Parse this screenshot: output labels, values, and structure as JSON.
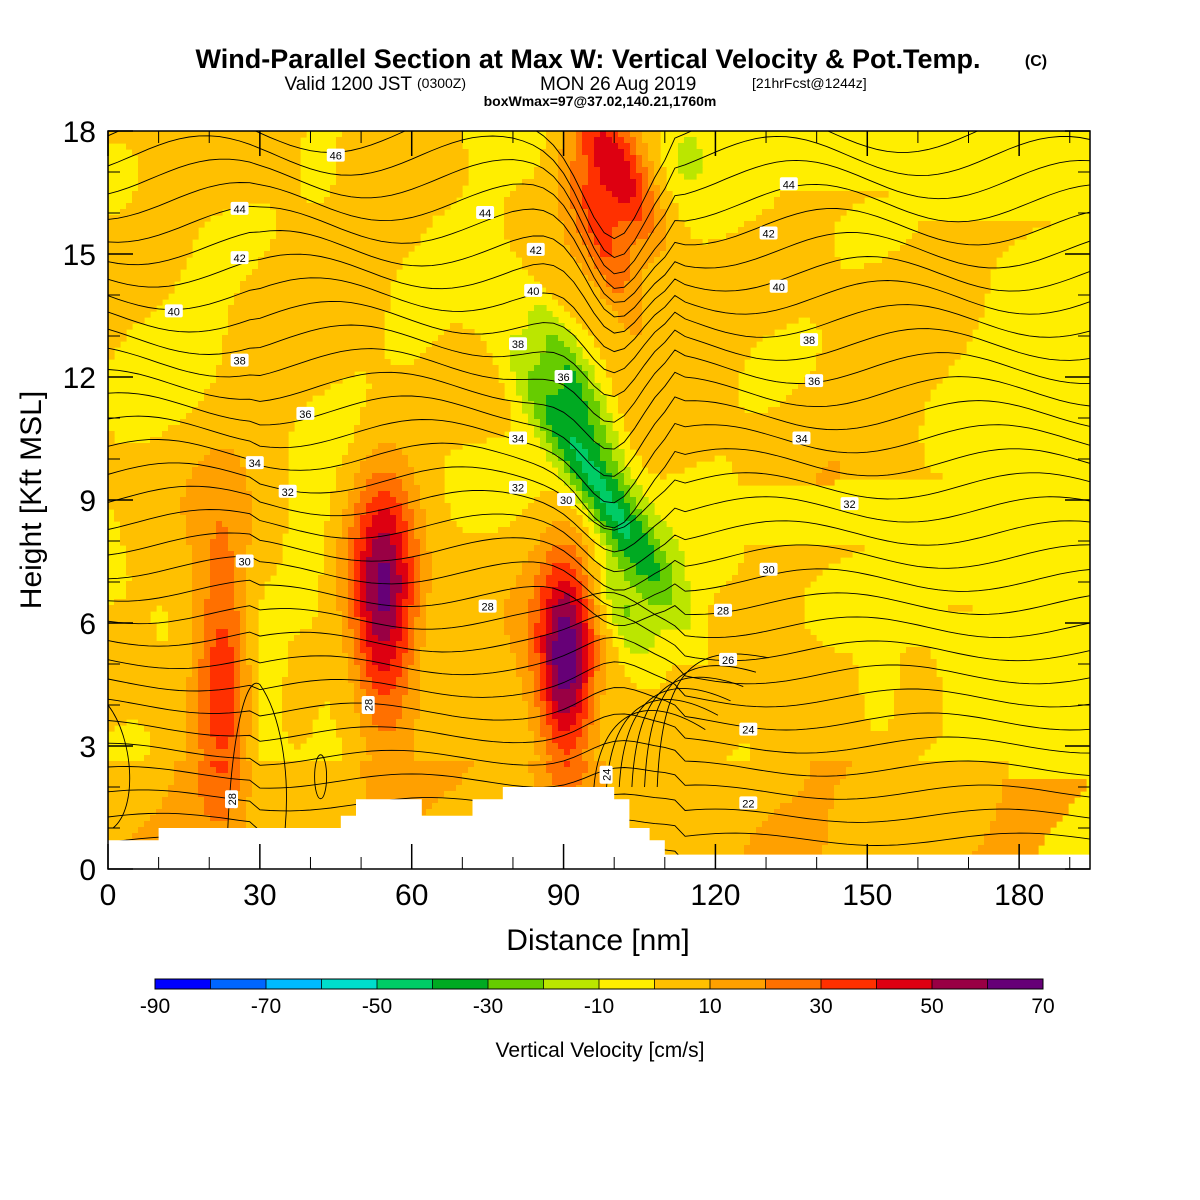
{
  "title": {
    "main": "Wind-Parallel Section at Max W: Vertical Velocity & Pot.Temp.",
    "main_sup": "(C)",
    "valid_pre": "Valid 1200 JST",
    "valid_z": "(0300Z)",
    "valid_date": "MON 26 Aug 2019",
    "valid_fcst": "[21hrFcst@1244z]",
    "boxinfo": "boxWmax=97@37.02,140.21,1760m"
  },
  "chart_data": {
    "type": "heatmap",
    "xlabel": "Distance [nm]",
    "ylabel": "Height [Kft MSL]",
    "xlim": [
      0,
      194
    ],
    "ylim": [
      0,
      18
    ],
    "xticks": [
      "0",
      "30",
      "60",
      "90",
      "120",
      "150",
      "180"
    ],
    "yticks": [
      "0",
      "3",
      "6",
      "9",
      "12",
      "15",
      "18"
    ],
    "colorbar": {
      "title": "Vertical Velocity [cm/s]",
      "labels": [
        "-90",
        "-70",
        "-50",
        "-30",
        "-10",
        "10",
        "30",
        "50",
        "70"
      ],
      "colors": [
        "#0000ff",
        "#0066ff",
        "#00bbff",
        "#00ddcc",
        "#00cc66",
        "#00aa22",
        "#66cc00",
        "#bbe600",
        "#ffee00",
        "#ffc000",
        "#ffa000",
        "#ff7000",
        "#ff3000",
        "#dd0011",
        "#990044",
        "#660077"
      ]
    },
    "terrain": [
      [
        0,
        0.7
      ],
      [
        10,
        0.7
      ],
      [
        10,
        1.0
      ],
      [
        46,
        1.0
      ],
      [
        46,
        1.3
      ],
      [
        49,
        1.3
      ],
      [
        49,
        1.7
      ],
      [
        62,
        1.7
      ],
      [
        62,
        1.3
      ],
      [
        72,
        1.3
      ],
      [
        72,
        1.7
      ],
      [
        78,
        1.7
      ],
      [
        78,
        2.0
      ],
      [
        100,
        2.0
      ],
      [
        100,
        1.7
      ],
      [
        103,
        1.7
      ],
      [
        103,
        1.0
      ],
      [
        107,
        1.0
      ],
      [
        107,
        0.7
      ],
      [
        110,
        0.7
      ],
      [
        110,
        0.35
      ],
      [
        194,
        0.35
      ]
    ],
    "w_features": [
      {
        "x": 22.5,
        "y": 5.0,
        "w": 35
      },
      {
        "x": 54.5,
        "y": 6.5,
        "w": 60
      },
      {
        "x": 90.5,
        "y": 5.0,
        "w": 65
      },
      {
        "x": 100,
        "y": 17.2,
        "w": 45
      },
      {
        "x": 98,
        "y": 15.2,
        "w": 25
      },
      {
        "x": 96,
        "y": 9.5,
        "w": -45
      },
      {
        "x": 92,
        "y": 12.0,
        "w": -30
      },
      {
        "x": 102,
        "y": 6.2,
        "w": -20
      },
      {
        "x": 30.5,
        "y": 4.0,
        "w": -12
      },
      {
        "x": 40,
        "y": 8.0,
        "w": -10
      },
      {
        "x": 152,
        "y": 4.2,
        "w": -10
      },
      {
        "x": 42,
        "y": 17.3,
        "w": -10
      },
      {
        "x": 114,
        "y": 17.5,
        "w": -10
      }
    ],
    "theta_contours": [
      {
        "label": "46",
        "label_at": [
          45,
          17.4
        ]
      },
      {
        "label": "44",
        "label_at": [
          26,
          16.1
        ]
      },
      {
        "label": "44",
        "label_at": [
          74.5,
          16.0
        ]
      },
      {
        "label": "44",
        "label_at": [
          134.5,
          16.7
        ]
      },
      {
        "label": "42",
        "label_at": [
          26,
          14.9
        ]
      },
      {
        "label": "42",
        "label_at": [
          84.5,
          15.1
        ]
      },
      {
        "label": "42",
        "label_at": [
          130.5,
          15.5
        ]
      },
      {
        "label": "40",
        "label_at": [
          13,
          13.6
        ]
      },
      {
        "label": "40",
        "label_at": [
          84,
          14.1
        ]
      },
      {
        "label": "40",
        "label_at": [
          132.5,
          14.2
        ]
      },
      {
        "label": "38",
        "label_at": [
          26,
          12.4
        ]
      },
      {
        "label": "38",
        "label_at": [
          81,
          12.8
        ]
      },
      {
        "label": "38",
        "label_at": [
          138.5,
          12.9
        ]
      },
      {
        "label": "36",
        "label_at": [
          39,
          11.1
        ]
      },
      {
        "label": "36",
        "label_at": [
          90,
          12.0
        ]
      },
      {
        "label": "36",
        "label_at": [
          139.5,
          11.9
        ]
      },
      {
        "label": "34",
        "label_at": [
          29,
          9.9
        ]
      },
      {
        "label": "34",
        "label_at": [
          81,
          10.5
        ]
      },
      {
        "label": "34",
        "label_at": [
          137,
          10.5
        ]
      },
      {
        "label": "32",
        "label_at": [
          35.5,
          9.2
        ]
      },
      {
        "label": "32",
        "label_at": [
          81,
          9.3
        ]
      },
      {
        "label": "32",
        "label_at": [
          146.5,
          8.9
        ]
      },
      {
        "label": "30",
        "label_at": [
          27,
          7.5
        ]
      },
      {
        "label": "30",
        "label_at": [
          90.5,
          9.0
        ]
      },
      {
        "label": "30",
        "label_at": [
          130.5,
          7.3
        ]
      },
      {
        "label": "28",
        "label_at": [
          75,
          6.4
        ]
      },
      {
        "label": "28",
        "label_at": [
          121.5,
          6.3
        ]
      },
      {
        "label": "28",
        "label_at": [
          51.5,
          4.0
        ]
      },
      {
        "label": "28",
        "label_at": [
          24.5,
          1.7
        ]
      },
      {
        "label": "26",
        "label_at": [
          122.5,
          5.1
        ]
      },
      {
        "label": "24",
        "label_at": [
          126.5,
          3.4
        ]
      },
      {
        "label": "24",
        "label_at": [
          98.5,
          2.3
        ]
      },
      {
        "label": "22",
        "label_at": [
          126.5,
          1.6
        ]
      }
    ]
  }
}
